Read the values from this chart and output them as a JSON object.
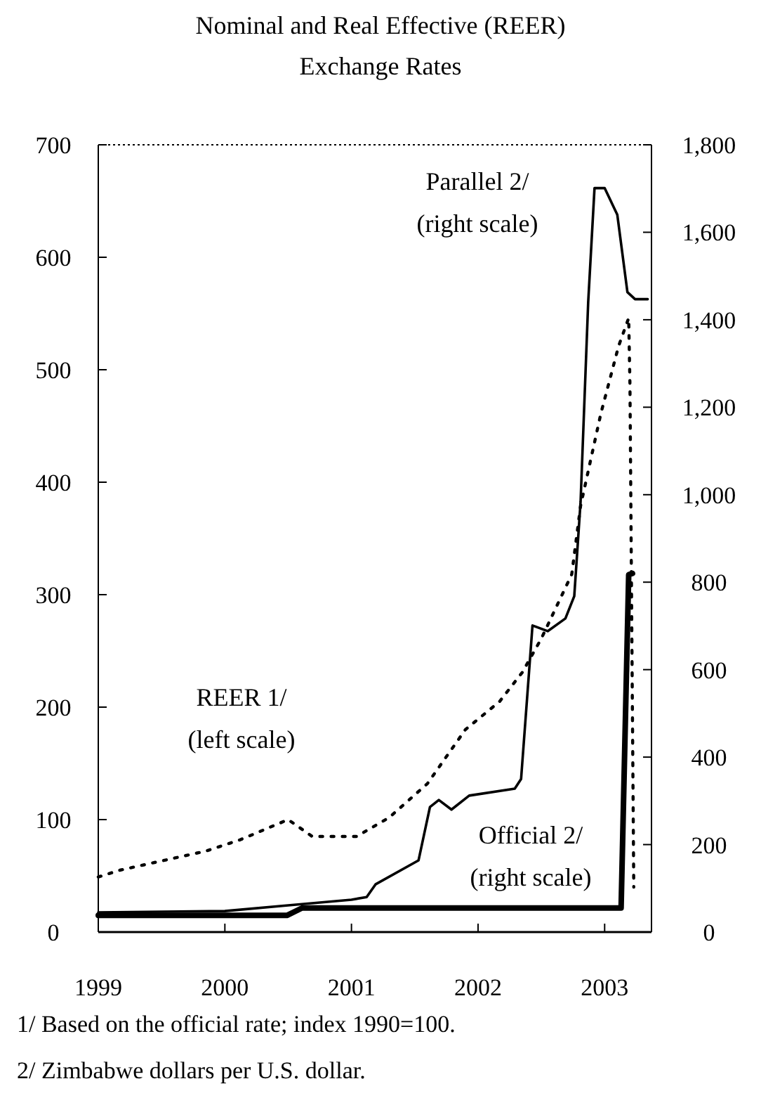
{
  "chart_data": {
    "type": "line",
    "title": "Nominal and Real Effective (REER) Exchange Rates",
    "xlim": [
      1999,
      2003.37
    ],
    "xticks": [
      1999,
      2000,
      2001,
      2002,
      2003
    ],
    "ylim": [
      0,
      700
    ],
    "yticks": [
      0,
      100,
      200,
      300,
      400,
      500,
      600,
      700
    ],
    "y2lim": [
      0,
      1800
    ],
    "y2ticks": [
      0,
      {
        "value": 200,
        "label": "200"
      },
      {
        "value": 400,
        "label": "400"
      },
      {
        "value": 600,
        "label": "600"
      },
      {
        "value": 800,
        "label": "800"
      },
      {
        "value": 1000,
        "label": "1,000"
      },
      {
        "value": 1200,
        "label": "1,200"
      },
      {
        "value": 1400,
        "label": "1,400"
      },
      {
        "value": 1600,
        "label": "1,600"
      },
      {
        "value": 1800,
        "label": "1,800"
      }
    ],
    "grid": false,
    "series": [
      {
        "name": "REER 1/ (left scale)",
        "color": "#000000",
        "line_style": "dotted",
        "x": [
          1999,
          1999.17,
          1999.85,
          2000.12,
          2000.5,
          2000.69,
          2001.04,
          2001.3,
          2001.6,
          2001.9,
          2002.17,
          2002.35,
          2002.5,
          2002.74,
          2002.81,
          2002.97,
          2003.11,
          2003.19,
          2003.2,
          2003.23
        ],
        "values": [
          49,
          55,
          72,
          82,
          100,
          85,
          85,
          102,
          132,
          180,
          205,
          231,
          261,
          318,
          379,
          461,
          521,
          546,
          486,
          40
        ]
      },
      {
        "name": "Parallel 2/ (right scale)",
        "color": "#000000",
        "line_style": "solid",
        "axis": "y2",
        "x": [
          1999,
          2000,
          2000.5,
          2001,
          2001.12,
          2001.19,
          2001.53,
          2001.62,
          2001.69,
          2001.79,
          2001.93,
          2002.29,
          2002.34,
          2002.43,
          2002.55,
          2002.69,
          2002.76,
          2002.81,
          2002.87,
          2002.92,
          2003,
          2003.1,
          2003.18,
          2003.24,
          2003.34
        ],
        "values": [
          45,
          48,
          61,
          74,
          80,
          109,
          164,
          286,
          302,
          280,
          312,
          328,
          350,
          701,
          688,
          717,
          768,
          984,
          1440,
          1701,
          1701,
          1640,
          1463,
          1447,
          1447
        ]
      },
      {
        "name": "Official 2/ (right scale)",
        "color": "#000000",
        "line_style": "solid",
        "axis": "y2",
        "x": [
          1999,
          2000.49,
          2000.61,
          2003.13,
          2003.19,
          2003.22
        ],
        "values": [
          38,
          38,
          55,
          55,
          817,
          820
        ]
      }
    ],
    "annotations": [
      "1/ Based on the official rate; index 1990=100.",
      "2/ Zimbabwe dollars per U.S. dollar."
    ]
  }
}
